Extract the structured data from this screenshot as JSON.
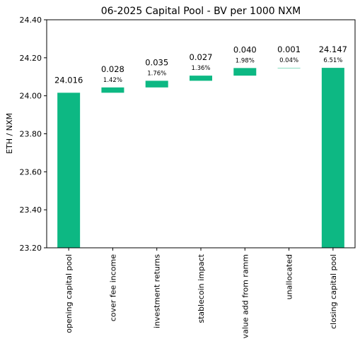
{
  "chart_data": {
    "type": "bar",
    "title": "06-2025 Capital Pool - BV per 1000 NXM",
    "xlabel": "",
    "ylabel": "ETH / NXM",
    "ylim": [
      23.2,
      24.4
    ],
    "yticks": [
      "23.20",
      "23.40",
      "23.60",
      "23.80",
      "24.00",
      "24.20",
      "24.40"
    ],
    "grid": false,
    "bar_color": "#0db883",
    "categories": [
      "opening capital pool",
      "cover fee income",
      "investment returns",
      "stablecoin impact",
      "value add from ramm",
      "unallocated",
      "closing capital pool"
    ],
    "bars": [
      {
        "bottom": 23.2,
        "top": 24.016,
        "label": "24.016",
        "pct": ""
      },
      {
        "bottom": 24.016,
        "top": 24.044,
        "label": "0.028",
        "pct": "1.42%"
      },
      {
        "bottom": 24.044,
        "top": 24.079,
        "label": "0.035",
        "pct": "1.76%"
      },
      {
        "bottom": 24.079,
        "top": 24.106,
        "label": "0.027",
        "pct": "1.36%"
      },
      {
        "bottom": 24.106,
        "top": 24.146,
        "label": "0.040",
        "pct": "1.98%"
      },
      {
        "bottom": 24.146,
        "top": 24.147,
        "label": "0.001",
        "pct": "0.04%"
      },
      {
        "bottom": 23.2,
        "top": 24.147,
        "label": "24.147",
        "pct": "6.51%"
      }
    ]
  }
}
